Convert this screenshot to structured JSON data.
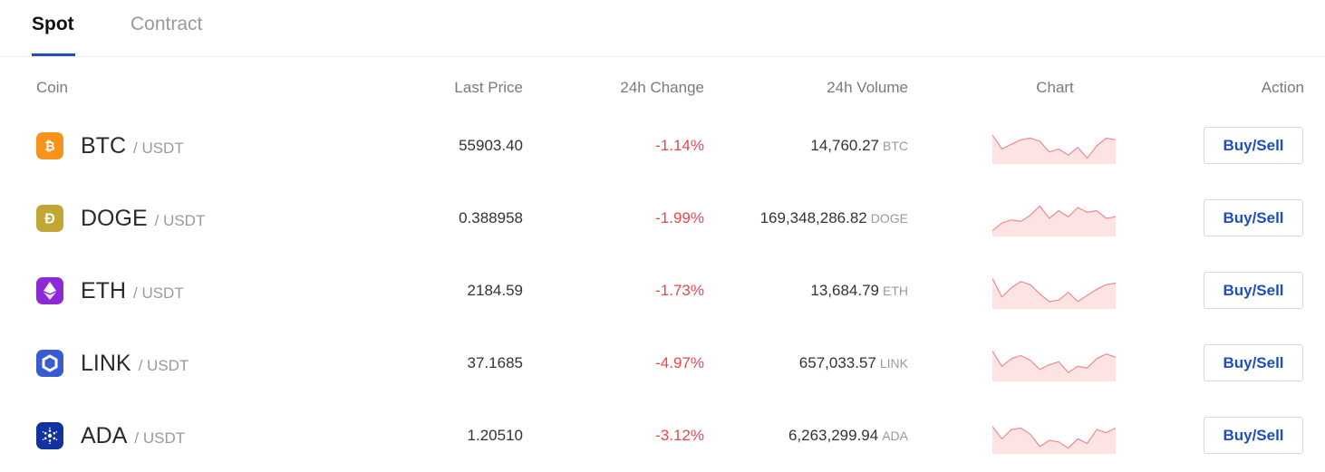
{
  "tabs": [
    {
      "label": "Spot",
      "active": true
    },
    {
      "label": "Contract",
      "active": false
    }
  ],
  "columns": {
    "coin": "Coin",
    "last_price": "Last Price",
    "change": "24h Change",
    "volume": "24h Volume",
    "chart": "Chart",
    "action": "Action"
  },
  "colors": {
    "accent": "#1e4fbf",
    "negative": "#e5484d",
    "sparkline_stroke": "#f08a8a",
    "sparkline_fill": "#fde3e3"
  },
  "rows": [
    {
      "symbol": "BTC",
      "pair": "/ USDT",
      "icon": "bitcoin-icon",
      "icon_color": "#f7931a",
      "price": "55903.40",
      "change": "-1.14%",
      "volume": "14,760.27",
      "volume_unit": "BTC",
      "action": "Buy/Sell",
      "trend": [
        0.85,
        0.4,
        0.55,
        0.7,
        0.75,
        0.65,
        0.3,
        0.4,
        0.2,
        0.45,
        0.1,
        0.5,
        0.75,
        0.7
      ]
    },
    {
      "symbol": "DOGE",
      "pair": "/ USDT",
      "icon": "dogecoin-icon",
      "icon_color": "#c2a633",
      "price": "0.388958",
      "change": "-1.99%",
      "volume": "169,348,286.82",
      "volume_unit": "DOGE",
      "action": "Buy/Sell",
      "trend": [
        0.1,
        0.35,
        0.45,
        0.4,
        0.6,
        0.9,
        0.5,
        0.75,
        0.55,
        0.85,
        0.7,
        0.75,
        0.5,
        0.55
      ]
    },
    {
      "symbol": "ETH",
      "pair": "/ USDT",
      "icon": "ethereum-icon",
      "icon_color": "#8c2bd6",
      "price": "2184.59",
      "change": "-1.73%",
      "volume": "13,684.79",
      "volume_unit": "ETH",
      "action": "Buy/Sell",
      "trend": [
        0.9,
        0.3,
        0.6,
        0.8,
        0.7,
        0.4,
        0.15,
        0.2,
        0.45,
        0.15,
        0.35,
        0.55,
        0.7,
        0.75
      ]
    },
    {
      "symbol": "LINK",
      "pair": "/ USDT",
      "icon": "chainlink-icon",
      "icon_color": "#375bd2",
      "price": "37.1685",
      "change": "-4.97%",
      "volume": "657,033.57",
      "volume_unit": "LINK",
      "action": "Buy/Sell",
      "trend": [
        0.9,
        0.4,
        0.65,
        0.75,
        0.6,
        0.3,
        0.45,
        0.55,
        0.2,
        0.4,
        0.35,
        0.65,
        0.8,
        0.7
      ]
    },
    {
      "symbol": "ADA",
      "pair": "/ USDT",
      "icon": "cardano-icon",
      "icon_color": "#1033a0",
      "price": "1.20510",
      "change": "-3.12%",
      "volume": "6,263,299.94",
      "volume_unit": "ADA",
      "action": "Buy/Sell",
      "trend": [
        0.8,
        0.4,
        0.7,
        0.75,
        0.55,
        0.15,
        0.35,
        0.3,
        0.1,
        0.4,
        0.25,
        0.7,
        0.6,
        0.75
      ]
    }
  ]
}
